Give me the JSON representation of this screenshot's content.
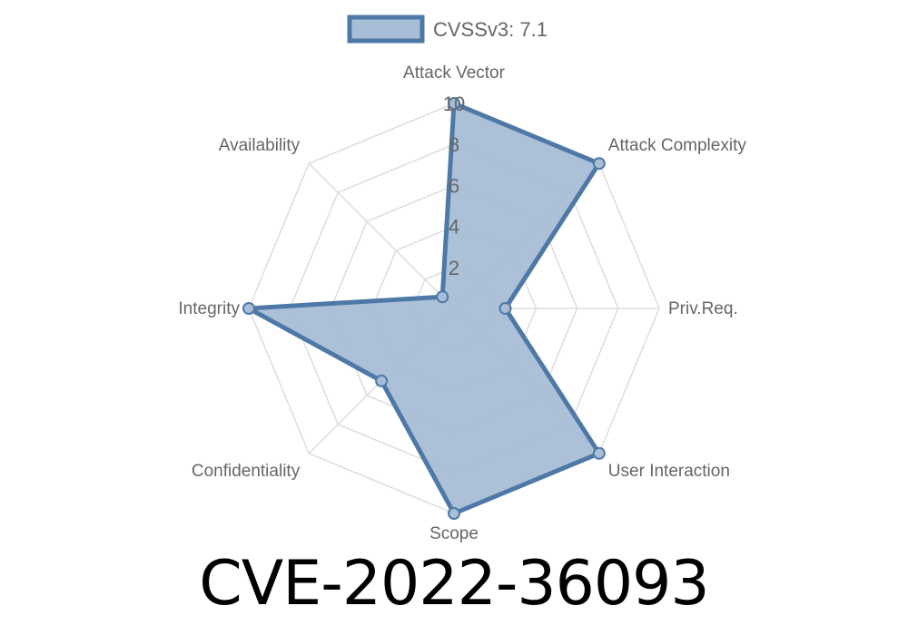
{
  "chart_data": {
    "type": "radar",
    "axes": [
      "Attack Vector",
      "Attack Complexity",
      "Priv.Req.",
      "User Interaction",
      "Scope",
      "Confidentiality",
      "Integrity",
      "Availability"
    ],
    "ticks": [
      "2",
      "4",
      "6",
      "8",
      "10"
    ],
    "range": [
      0,
      10
    ],
    "series": [
      {
        "name": "CVSSv3: 7.1",
        "values": [
          10,
          10,
          2.5,
          10,
          10,
          5,
          10,
          0.8
        ]
      }
    ],
    "colors": {
      "stroke": "#4e79a7",
      "fill": "#a8bdd6",
      "grid": "#dddddd"
    },
    "legend_position": "top-center",
    "grid": true
  },
  "title": "CVE-2022-36093"
}
